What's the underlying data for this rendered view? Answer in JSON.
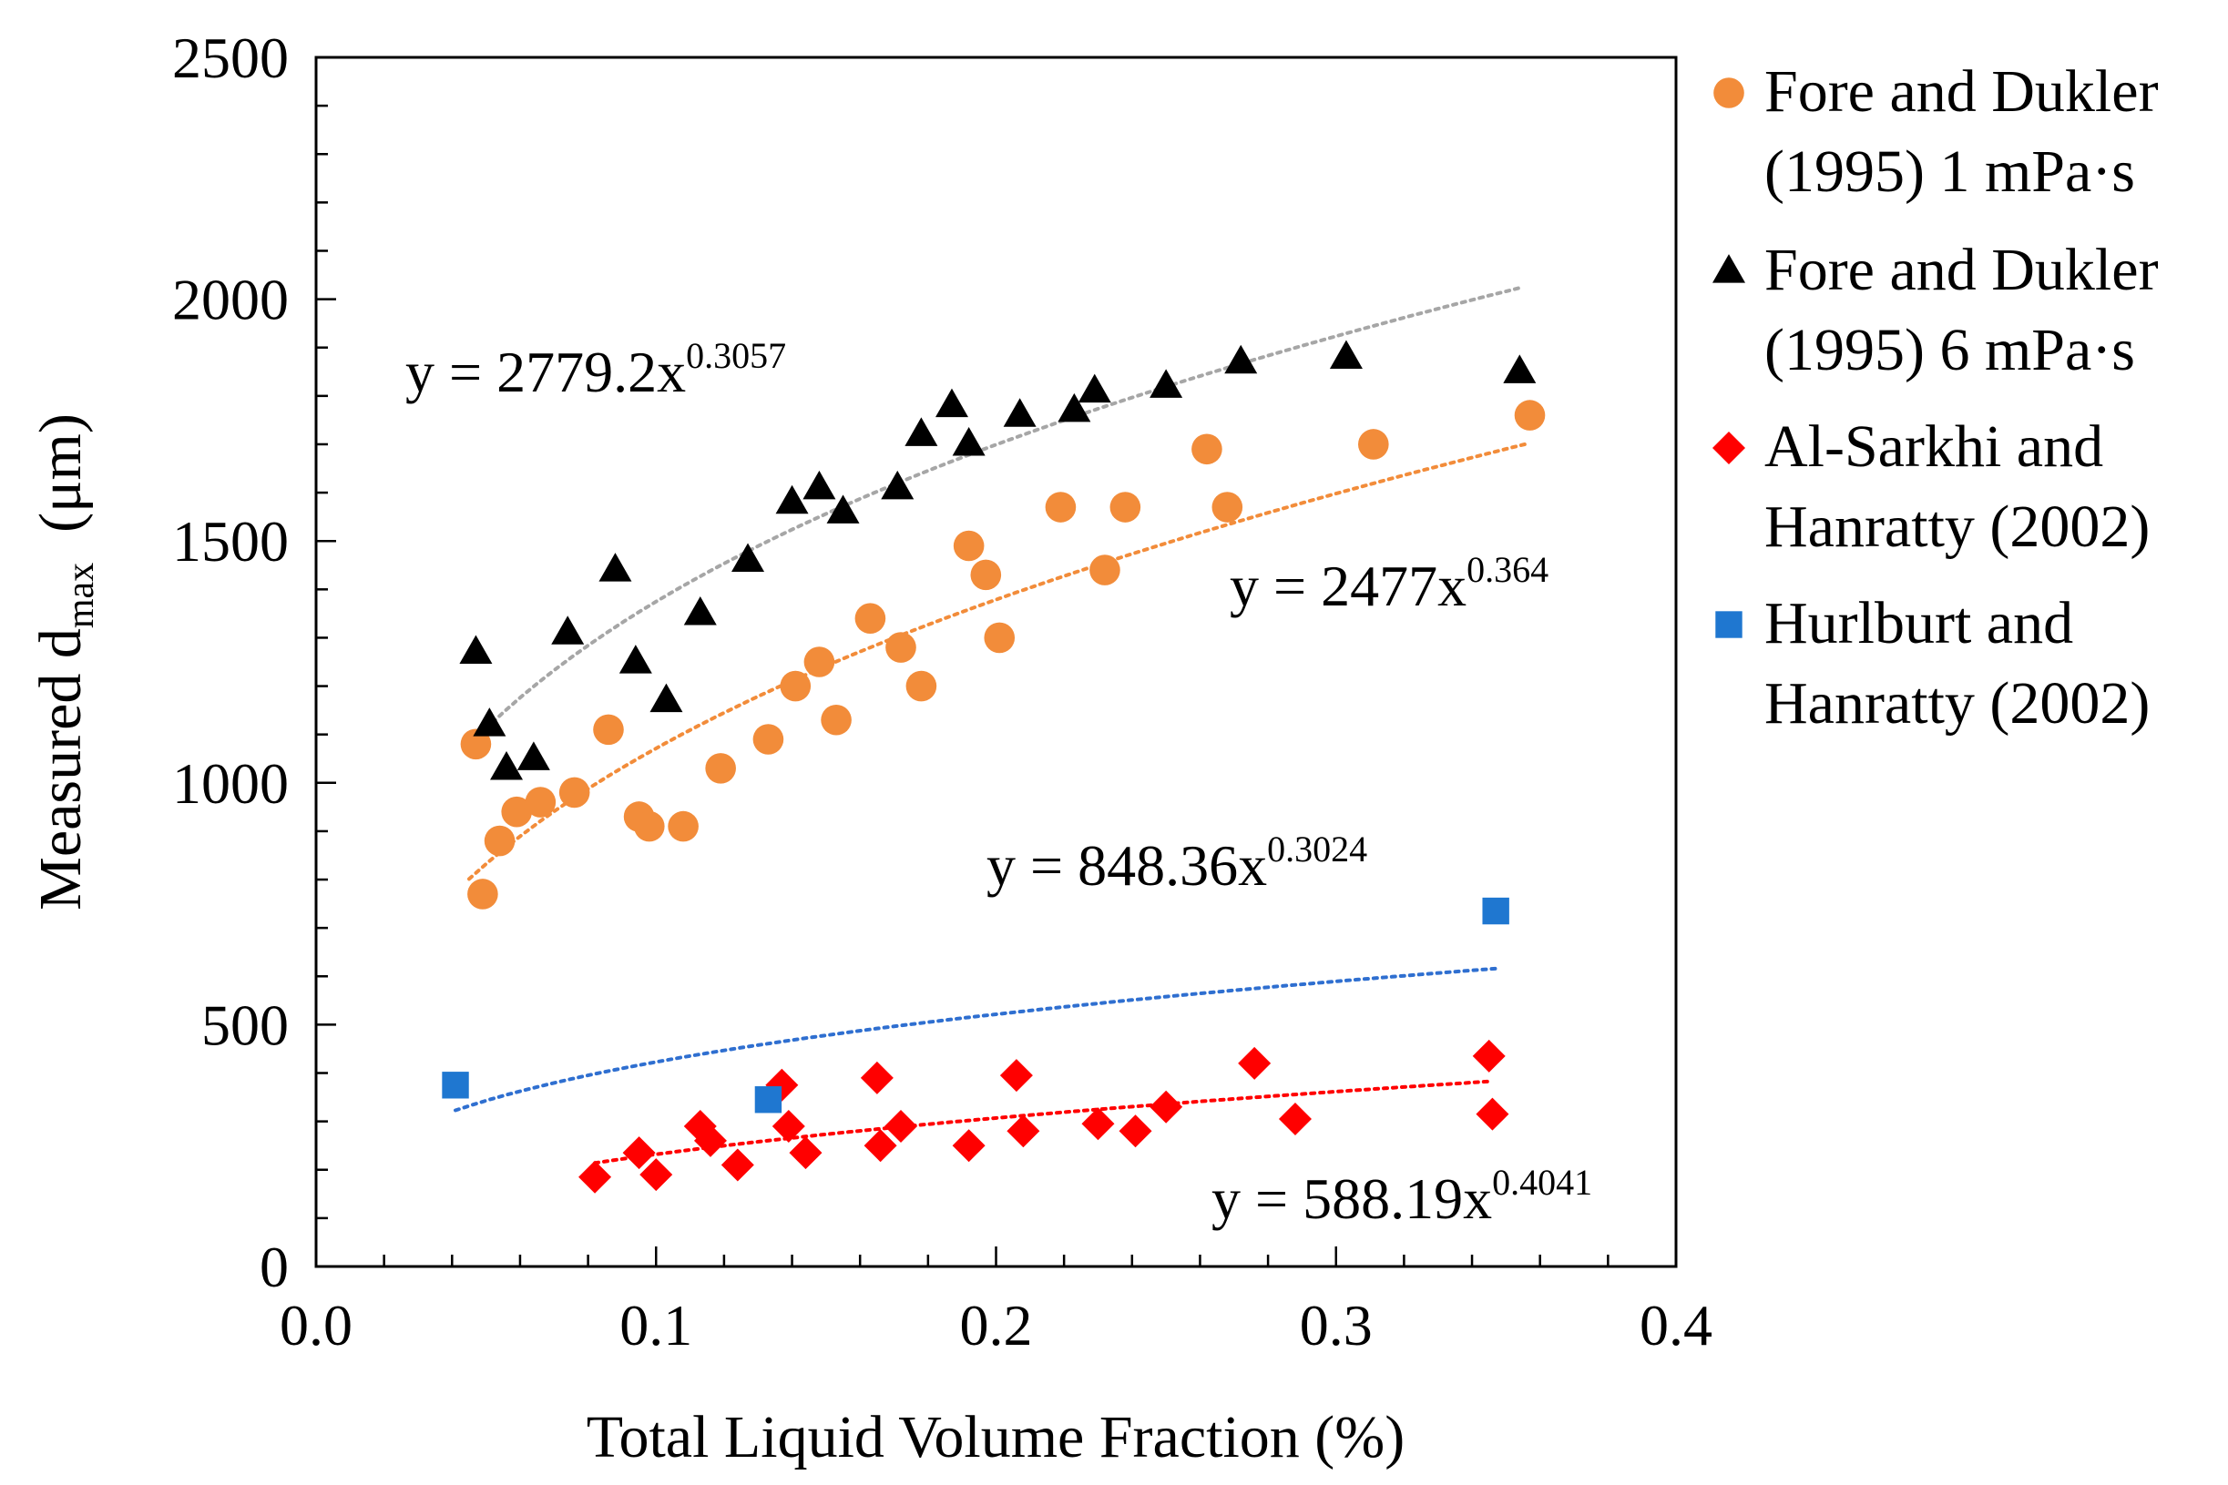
{
  "chart_data": {
    "type": "scatter",
    "xlabel": "Total Liquid Volume Fraction (%)",
    "ylabel_main": "Measured d",
    "ylabel_sub": "max",
    "ylabel_unit": "  (μm)",
    "xlim": [
      0.0,
      0.4
    ],
    "ylim": [
      0,
      2500
    ],
    "x_ticks": [
      0.0,
      0.1,
      0.2,
      0.3,
      0.4
    ],
    "x_tick_labels": [
      "0.0",
      "0.1",
      "0.2",
      "0.3",
      "0.4"
    ],
    "y_ticks": [
      0,
      500,
      1000,
      1500,
      2000,
      2500
    ],
    "y_tick_labels": [
      "0",
      "500",
      "1000",
      "1500",
      "2000",
      "2500"
    ],
    "grid": false,
    "legend_position": "right",
    "series": [
      {
        "name_lines": [
          "Fore and Dukler",
          "(1995) 1 mPa·s"
        ],
        "marker": "circle",
        "color": "#F28C3A",
        "trend_color": "#F28C3A",
        "trend": {
          "a": 2477,
          "b": 0.364,
          "x_range": [
            0.045,
            0.357
          ]
        },
        "equation": {
          "base": "y = 2477x",
          "exp": "0.364"
        },
        "x": [
          0.047,
          0.049,
          0.054,
          0.059,
          0.066,
          0.076,
          0.086,
          0.095,
          0.098,
          0.108,
          0.119,
          0.133,
          0.141,
          0.148,
          0.153,
          0.163,
          0.172,
          0.178,
          0.192,
          0.197,
          0.201,
          0.219,
          0.232,
          0.238,
          0.262,
          0.268,
          0.311,
          0.357
        ],
        "y": [
          1080,
          770,
          880,
          940,
          960,
          980,
          1110,
          930,
          910,
          910,
          1030,
          1090,
          1200,
          1250,
          1130,
          1340,
          1280,
          1200,
          1490,
          1430,
          1300,
          1570,
          1440,
          1570,
          1690,
          1570,
          1700,
          1760
        ]
      },
      {
        "name_lines": [
          "Fore and Dukler",
          "(1995) 6 mPa·s"
        ],
        "marker": "triangle",
        "color": "#000000",
        "trend_color": "#A6A6A6",
        "trend": {
          "a": 2779.2,
          "b": 0.3057,
          "x_range": [
            0.05,
            0.354
          ]
        },
        "equation": {
          "base": "y = 2779.2x",
          "exp": "0.3057"
        },
        "x": [
          0.047,
          0.051,
          0.056,
          0.064,
          0.074,
          0.088,
          0.094,
          0.103,
          0.113,
          0.127,
          0.14,
          0.148,
          0.155,
          0.171,
          0.178,
          0.187,
          0.192,
          0.207,
          0.223,
          0.229,
          0.25,
          0.272,
          0.303,
          0.354
        ],
        "y": [
          1270,
          1120,
          1030,
          1050,
          1310,
          1440,
          1250,
          1170,
          1350,
          1460,
          1580,
          1610,
          1560,
          1610,
          1720,
          1780,
          1700,
          1760,
          1770,
          1810,
          1820,
          1870,
          1880,
          1850
        ]
      },
      {
        "name_lines": [
          "Al-Sarkhi and",
          "Hanratty (2002)"
        ],
        "marker": "diamond",
        "color": "#FF0000",
        "trend_color": "#FF0000",
        "trend": {
          "a": 588.19,
          "b": 0.4041,
          "x_range": [
            0.082,
            0.345
          ]
        },
        "equation": {
          "base": "y = 588.19x",
          "exp": "0.4041"
        },
        "x": [
          0.082,
          0.095,
          0.1,
          0.113,
          0.116,
          0.124,
          0.137,
          0.139,
          0.144,
          0.165,
          0.166,
          0.172,
          0.192,
          0.206,
          0.208,
          0.23,
          0.241,
          0.25,
          0.276,
          0.288,
          0.345,
          0.346
        ],
        "y": [
          185,
          235,
          190,
          290,
          260,
          210,
          375,
          290,
          235,
          390,
          250,
          290,
          250,
          395,
          280,
          295,
          280,
          330,
          420,
          305,
          435,
          315
        ]
      },
      {
        "name_lines": [
          "Hurlburt and",
          "Hanratty (2002)"
        ],
        "marker": "square",
        "color": "#1F77D0",
        "trend_color": "#2F6FD0",
        "trend": {
          "a": 848.36,
          "b": 0.3024,
          "x_range": [
            0.041,
            0.347
          ]
        },
        "equation": {
          "base": "y = 848.36x",
          "exp": "0.3024"
        },
        "x": [
          0.041,
          0.133,
          0.347
        ],
        "y": [
          375,
          345,
          735
        ]
      }
    ]
  }
}
